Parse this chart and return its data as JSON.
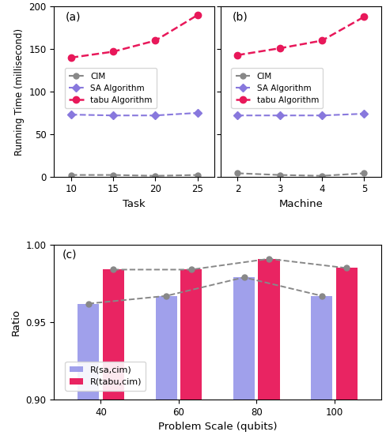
{
  "panel_a": {
    "label": "(a)",
    "xlabel": "Task",
    "x": [
      10,
      15,
      20,
      25
    ],
    "cim": [
      2,
      2,
      1,
      2
    ],
    "sa": [
      73,
      72,
      72,
      75
    ],
    "tabu": [
      140,
      147,
      160,
      190
    ],
    "ylim": [
      0,
      200
    ],
    "yticks": [
      0,
      50,
      100,
      150,
      200
    ]
  },
  "panel_b": {
    "label": "(b)",
    "xlabel": "Machine",
    "x": [
      2,
      3,
      4,
      5
    ],
    "cim": [
      4,
      2,
      1,
      4
    ],
    "sa": [
      72,
      72,
      72,
      74
    ],
    "tabu": [
      143,
      151,
      160,
      188
    ],
    "ylim": [
      0,
      200
    ],
    "yticks": [
      0,
      50,
      100,
      150,
      200
    ]
  },
  "panel_c": {
    "label": "(c)",
    "xlabel": "Problem Scale (qubits)",
    "ylabel": "Ratio",
    "x": [
      40,
      60,
      80,
      100
    ],
    "sa_cim": [
      0.962,
      0.967,
      0.979,
      0.967
    ],
    "tabu_cim": [
      0.984,
      0.984,
      0.991,
      0.985
    ],
    "ylim": [
      0.9,
      1.0
    ],
    "yticks": [
      0.9,
      0.95,
      1.0
    ]
  },
  "colors": {
    "cim": "#888888",
    "sa": "#8878DD",
    "tabu": "#E8185A",
    "sa_bar": "#9090E8",
    "tabu_bar": "#E8185A"
  },
  "ylabel_top": "Running Time (millisecond)"
}
